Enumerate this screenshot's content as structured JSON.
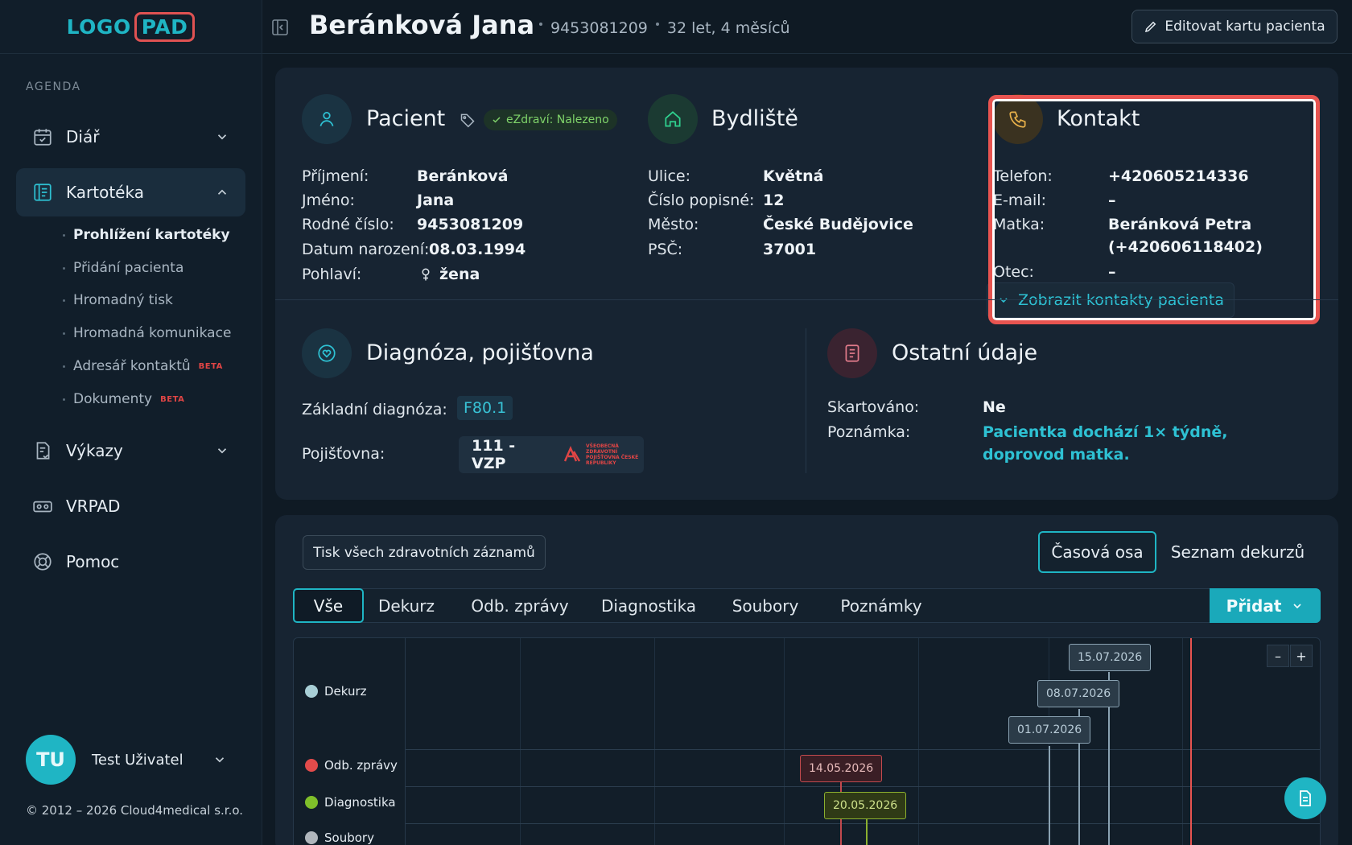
{
  "sidebar": {
    "logo": {
      "part1": "LOGO",
      "part2": "PAD"
    },
    "section": "AGENDA",
    "items": [
      {
        "label": "Diář"
      },
      {
        "label": "Kartotéka"
      },
      {
        "label": "Výkazy"
      },
      {
        "label": "VRPAD"
      },
      {
        "label": "Pomoc"
      }
    ],
    "sub_items": [
      {
        "label": "Prohlížení kartotéky"
      },
      {
        "label": "Přidání pacienta"
      },
      {
        "label": "Hromadný tisk"
      },
      {
        "label": "Hromadná komunikace"
      },
      {
        "label": "Adresář kontaktů",
        "badge": "BETA"
      },
      {
        "label": "Dokumenty",
        "badge": "BETA"
      }
    ],
    "user": {
      "initials": "TU",
      "name": "Test Uživatel"
    },
    "copyright": "© 2012 – 2026 Cloud4medical s.r.o."
  },
  "header": {
    "patient_name": "Beránková Jana",
    "id": "9453081209",
    "age": "32 let, 4 měsíců",
    "edit_label": "Editovat kartu pacienta"
  },
  "patient": {
    "title": "Pacient",
    "badge": "eZdraví: Nalezeno",
    "fields": [
      {
        "label": "Příjmení:",
        "value": "Beránková"
      },
      {
        "label": "Jméno:",
        "value": "Jana"
      },
      {
        "label": "Rodné číslo:",
        "value": "9453081209"
      },
      {
        "label": "Datum narození:",
        "value": "08.03.1994"
      },
      {
        "label": "Pohlaví:",
        "value": "žena"
      }
    ]
  },
  "residence": {
    "title": "Bydliště",
    "fields": [
      {
        "label": "Ulice:",
        "value": "Květná"
      },
      {
        "label": "Číslo popisné:",
        "value": "12"
      },
      {
        "label": "Město:",
        "value": "České Budějovice"
      },
      {
        "label": "PSČ:",
        "value": "37001"
      }
    ]
  },
  "contact": {
    "title": "Kontakt",
    "fields": [
      {
        "label": "Telefon:",
        "value": "+420605214336"
      },
      {
        "label": "E-mail:",
        "value": "–"
      },
      {
        "label": "Matka:",
        "value": "Beránková Petra",
        "value2": "(+420606118402)"
      },
      {
        "label": "Otec:",
        "value": "–"
      }
    ],
    "show_label": "Zobrazit kontakty pacienta"
  },
  "diagnosis": {
    "title": "Diagnóza, pojišťovna",
    "diag_label": "Základní diagnóza:",
    "diag_code": "F80.1",
    "ins_label": "Pojišťovna:",
    "ins_value": "111 - VZP",
    "ins_logo_text": "VŠEOBECNÁ ZDRAVOTNÍ POJIŠŤOVNA ČESKÉ REPUBLIKY"
  },
  "other": {
    "title": "Ostatní údaje",
    "shred_label": "Skartováno:",
    "shred_value": "Ne",
    "note_label": "Poznámka:",
    "note_value": "Pacientka dochází 1× týdně, doprovod matka."
  },
  "records": {
    "print_label": "Tisk všech zdravotních záznamů",
    "view_timeline": "Časová osa",
    "view_list": "Seznam dekurzů",
    "tabs": [
      "Vše",
      "Dekurz",
      "Odb. zprávy",
      "Diagnostika",
      "Soubory",
      "Poznámky"
    ],
    "add_label": "Přidat",
    "zoom_out": "–",
    "zoom_in": "+",
    "timeline_rows": [
      {
        "label": "Dekurz",
        "color": "#a8cfd6"
      },
      {
        "label": "Odb. zprávy",
        "color": "#e24b4b"
      },
      {
        "label": "Diagnostika",
        "color": "#7fbf2a"
      },
      {
        "label": "Soubory",
        "color": "#b0b6bc"
      }
    ],
    "events": [
      {
        "date": "15.07.2026",
        "row": "Dekurz"
      },
      {
        "date": "08.07.2026",
        "row": "Dekurz"
      },
      {
        "date": "01.07.2026",
        "row": "Dekurz"
      },
      {
        "date": "14.05.2026",
        "row": "Odb. zprávy"
      },
      {
        "date": "20.05.2026",
        "row": "Diagnostika"
      }
    ]
  },
  "colors": {
    "accent": "#1fb5c4",
    "highlight": "#e85450"
  }
}
